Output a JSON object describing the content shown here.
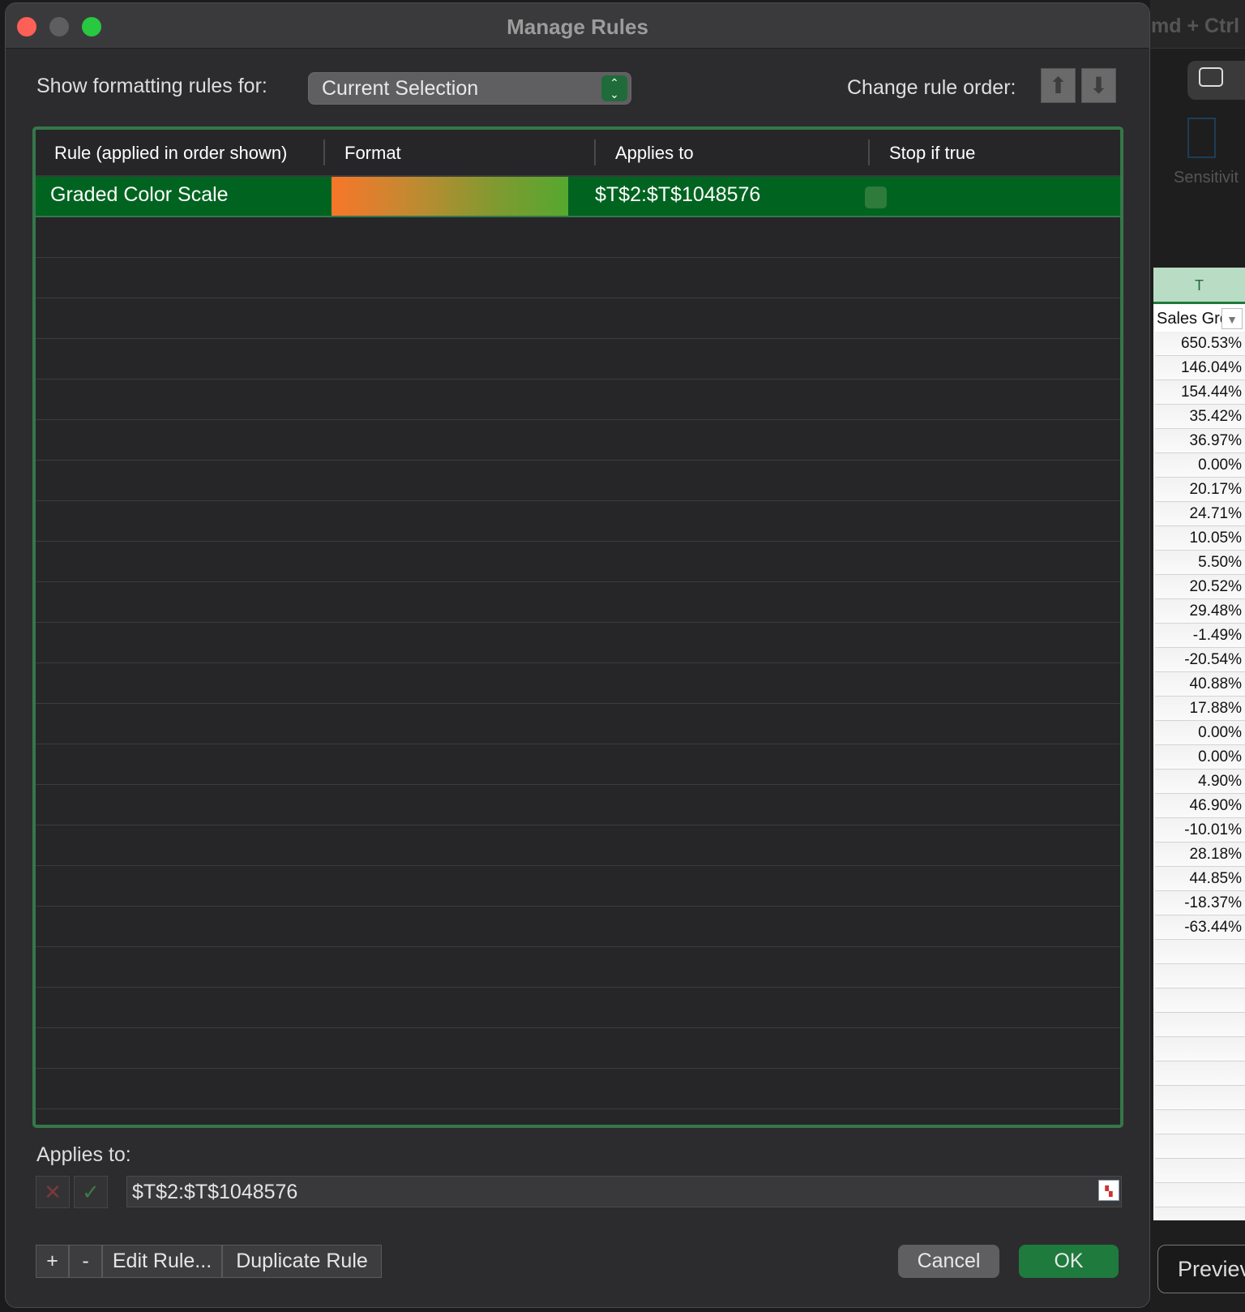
{
  "dialog": {
    "title": "Manage Rules",
    "show_rules_label": "Show formatting rules for:",
    "show_rules_value": "Current Selection",
    "change_order_label": "Change rule order:",
    "columns": [
      "Rule (applied in order shown)",
      "Format",
      "Applies to",
      "Stop if true"
    ],
    "rules": [
      {
        "name": "Graded Color Scale",
        "format_gradient": [
          "#f8762a",
          "#55a82f"
        ],
        "applies_to": "$T$2:$T$1048576",
        "stop_if_true": false
      }
    ],
    "applies_to_label": "Applies to:",
    "applies_to_value": "$T$2:$T$1048576",
    "buttons": {
      "add": "+",
      "remove": "-",
      "edit": "Edit Rule...",
      "duplicate": "Duplicate Rule",
      "cancel": "Cancel",
      "ok": "OK"
    }
  },
  "background": {
    "shortcut_text": "md + Ctrl",
    "ribbon_label": "Sensitivit",
    "column_header": "T",
    "header_cell": "Sales Grc",
    "values": [
      "650.53%",
      "146.04%",
      "154.44%",
      "35.42%",
      "36.97%",
      "0.00%",
      "20.17%",
      "24.71%",
      "10.05%",
      "5.50%",
      "20.52%",
      "29.48%",
      "-1.49%",
      "-20.54%",
      "40.88%",
      "17.88%",
      "0.00%",
      "0.00%",
      "4.90%",
      "46.90%",
      "-10.01%",
      "28.18%",
      "44.85%",
      "-18.37%",
      "-63.44%"
    ],
    "preview_label": "Previev"
  },
  "colors": {
    "accent": "#006420",
    "frame": "#35774a",
    "ok": "#1f7a3d"
  }
}
